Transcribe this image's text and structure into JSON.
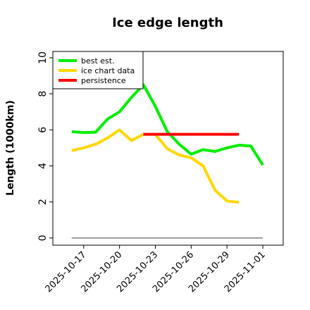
{
  "chart_data": {
    "type": "line",
    "title": "Ice edge length",
    "y_label": "Length (1000km)",
    "x": [
      "2025-10-16",
      "2025-10-17",
      "2025-10-18",
      "2025-10-19",
      "2025-10-20",
      "2025-10-21",
      "2025-10-22",
      "2025-10-23",
      "2025-10-24",
      "2025-10-25",
      "2025-10-26",
      "2025-10-27",
      "2025-10-28",
      "2025-10-29",
      "2025-10-30",
      "2025-10-31",
      "2025-11-01"
    ],
    "series": [
      {
        "name": "best est.",
        "color": "#00ee00",
        "values": [
          5.9,
          5.85,
          5.87,
          6.6,
          7.0,
          7.8,
          8.5,
          7.3,
          5.9,
          5.2,
          4.65,
          4.9,
          4.8,
          5.0,
          5.15,
          5.1,
          4.05
        ]
      },
      {
        "name": "ice chart data",
        "color": "#ffd700",
        "values": [
          4.85,
          5.0,
          5.2,
          5.55,
          6.0,
          5.4,
          5.75,
          5.75,
          4.95,
          4.6,
          4.45,
          4.0,
          2.65,
          2.05,
          1.98,
          null,
          null
        ]
      },
      {
        "name": "persistence",
        "color": "#ff0000",
        "values": [
          null,
          null,
          null,
          null,
          null,
          null,
          5.75,
          5.75,
          5.75,
          5.75,
          5.75,
          5.75,
          5.75,
          5.75,
          5.75,
          null,
          null
        ]
      }
    ],
    "reference_line": {
      "value": 0,
      "color": "#808080"
    },
    "xlim": [
      "2025-10-14T10:00",
      "2025-11-02T17:00"
    ],
    "xticks": [
      "2025-10-17",
      "2025-10-20",
      "2025-10-23",
      "2025-10-26",
      "2025-10-29",
      "2025-11-01"
    ],
    "ylim": [
      -0.4,
      10.35
    ],
    "yticks": [
      0,
      2,
      4,
      6,
      8,
      10
    ],
    "legend": "upper left"
  }
}
